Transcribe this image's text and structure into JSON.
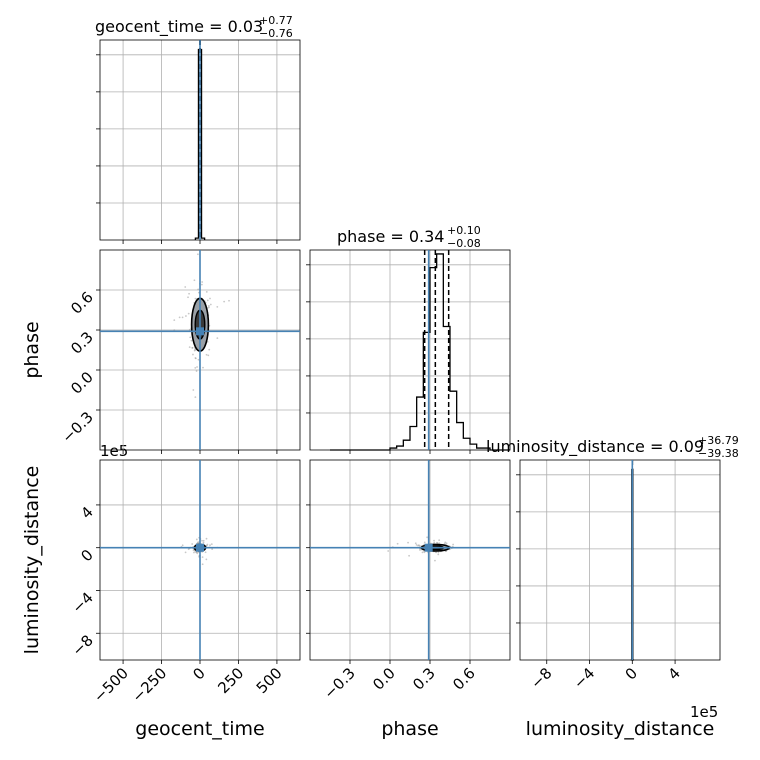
{
  "chart_data": {
    "type": "corner",
    "colors": {
      "truth": "#4682b4",
      "histogram": "#000000",
      "quantile": "#000000",
      "grid": "#b0b0b0",
      "scatter": "#9a9a9a"
    },
    "grid": true,
    "parameters": [
      {
        "name": "geocent_time",
        "title_main": "geocent_time = 0.03",
        "title_plus": "+0.77",
        "title_minus": "−0.76",
        "range": [
          -650,
          650
        ],
        "ticks": [
          -500,
          -250,
          0,
          250,
          500
        ],
        "tick_labels": [
          "−500",
          "−250",
          "0",
          "250",
          "500"
        ],
        "truth": 0,
        "quantiles": [
          -0.73,
          0.03,
          0.8
        ],
        "hist_x": [
          -30,
          -10,
          10,
          30
        ],
        "hist_counts": [
          0.01,
          1.0,
          0.01
        ],
        "hist_ymax": 1.05
      },
      {
        "name": "phase",
        "title_main": "phase = 0.34",
        "title_plus": "+0.10",
        "title_minus": "−0.08",
        "range": [
          -0.6,
          0.9
        ],
        "ticks": [
          -0.3,
          0.0,
          0.3,
          0.6
        ],
        "tick_labels": [
          "−0.3",
          "0.0",
          "0.3",
          "0.6"
        ],
        "truth": 0.29,
        "quantiles": [
          0.26,
          0.34,
          0.44
        ],
        "hist_x": [
          -0.45,
          -0.4,
          -0.35,
          -0.3,
          -0.25,
          -0.2,
          -0.15,
          -0.1,
          -0.05,
          0.0,
          0.05,
          0.1,
          0.15,
          0.2,
          0.25,
          0.3,
          0.35,
          0.4,
          0.45,
          0.5,
          0.55,
          0.6,
          0.65,
          0.7,
          0.75,
          0.8,
          0.85,
          0.9
        ],
        "hist_counts": [
          0.0,
          0.0,
          0.0,
          0.0,
          0.0,
          0.0,
          0.0,
          0.0,
          0.0,
          0.01,
          0.02,
          0.05,
          0.12,
          0.27,
          0.6,
          0.93,
          1.0,
          0.63,
          0.3,
          0.14,
          0.06,
          0.03,
          0.01,
          0.01,
          0.0,
          0.0,
          0.0
        ],
        "hist_ymax": 1.02
      },
      {
        "name": "luminosity_distance",
        "title_main": "luminosity_distance = 0.09",
        "title_plus": "+36.79",
        "title_minus": "−39.38",
        "range": [
          -1.05,
          0.82
        ],
        "ticks": [
          -0.8,
          -0.4,
          0.0,
          0.4
        ],
        "tick_labels": [
          "−8",
          "−4",
          "0",
          "4"
        ],
        "offset_text": "1e5",
        "truth": 0,
        "quantiles": [
          -0.00039,
          9e-07,
          0.00037
        ],
        "hist_x": [
          -0.015,
          -0.005,
          0.005,
          0.015
        ],
        "hist_counts": [
          0.0,
          1.0,
          0.0
        ],
        "hist_ymax": 1.05,
        "ytick_labels": [
          "4",
          "0",
          "−4",
          "−8"
        ],
        "y_offset_text": "1e5"
      }
    ]
  }
}
